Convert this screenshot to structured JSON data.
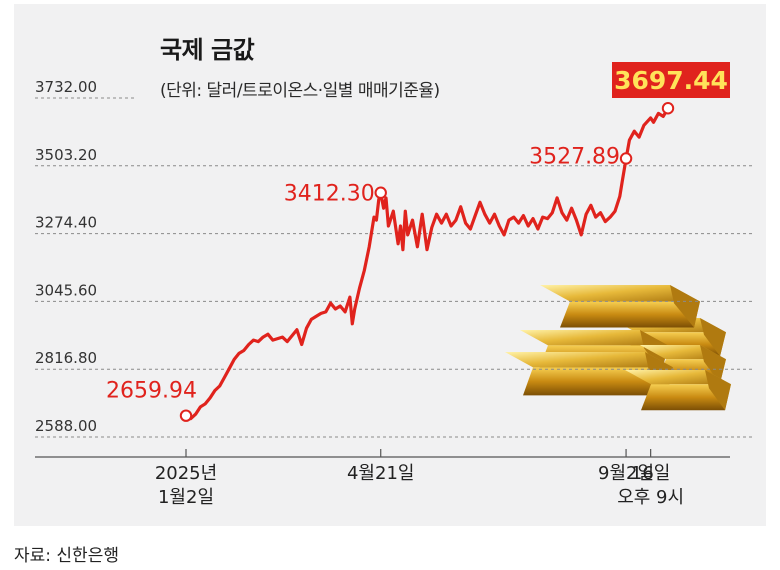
{
  "title": "국제 금값",
  "unit_note": "(단위: 달러/트로이온스·일별 매매기준율)",
  "source": "자료: 신한은행",
  "colors": {
    "line": "#e0231d",
    "highlight_box": "#e0231d",
    "background": "#f1f1f2"
  },
  "chart_data": {
    "type": "line",
    "title": "국제 금값",
    "ylim": [
      2588.0,
      3732.0
    ],
    "y_ticks": [
      "3732.00",
      "3503.20",
      "3274.40",
      "3045.60",
      "2816.80",
      "2588.00"
    ],
    "x_ticks": [
      {
        "line1": "2025년",
        "line2": "1월2일",
        "t": 0
      },
      {
        "line1": "4월21일",
        "line2": "",
        "t": 0.404
      },
      {
        "line1": "9월2일",
        "line2": "",
        "t": 0.913
      },
      {
        "line1": "16일",
        "line2": "오후 9시",
        "t": 0.964
      }
    ],
    "annotations": [
      {
        "label": "2659.94",
        "t": 0,
        "value": 2659.94
      },
      {
        "label": "3412.30",
        "t": 0.404,
        "value": 3412.3
      },
      {
        "label": "3527.89",
        "t": 0.913,
        "value": 3527.89
      },
      {
        "label": "3697.44",
        "t": 1.0,
        "value": 3697.44,
        "highlight": true
      }
    ],
    "series": [
      {
        "values": [
          [
            0.0,
            2659.94
          ],
          [
            0.01,
            2650
          ],
          [
            0.02,
            2665
          ],
          [
            0.03,
            2690
          ],
          [
            0.04,
            2700
          ],
          [
            0.05,
            2720
          ],
          [
            0.06,
            2745
          ],
          [
            0.07,
            2760
          ],
          [
            0.08,
            2790
          ],
          [
            0.09,
            2820
          ],
          [
            0.1,
            2850
          ],
          [
            0.11,
            2870
          ],
          [
            0.12,
            2880
          ],
          [
            0.13,
            2900
          ],
          [
            0.14,
            2915
          ],
          [
            0.15,
            2910
          ],
          [
            0.16,
            2925
          ],
          [
            0.17,
            2935
          ],
          [
            0.18,
            2915
          ],
          [
            0.19,
            2920
          ],
          [
            0.2,
            2925
          ],
          [
            0.21,
            2910
          ],
          [
            0.22,
            2930
          ],
          [
            0.23,
            2950
          ],
          [
            0.24,
            2900
          ],
          [
            0.25,
            2955
          ],
          [
            0.26,
            2985
          ],
          [
            0.27,
            2995
          ],
          [
            0.28,
            3005
          ],
          [
            0.29,
            3010
          ],
          [
            0.3,
            3040
          ],
          [
            0.31,
            3020
          ],
          [
            0.32,
            3030
          ],
          [
            0.33,
            3010
          ],
          [
            0.34,
            3060
          ],
          [
            0.345,
            2970
          ],
          [
            0.35,
            3020
          ],
          [
            0.36,
            3090
          ],
          [
            0.37,
            3150
          ],
          [
            0.38,
            3230
          ],
          [
            0.39,
            3330
          ],
          [
            0.395,
            3320
          ],
          [
            0.4,
            3390
          ],
          [
            0.404,
            3412.3
          ],
          [
            0.41,
            3360
          ],
          [
            0.415,
            3395
          ],
          [
            0.42,
            3300
          ],
          [
            0.43,
            3350
          ],
          [
            0.44,
            3240
          ],
          [
            0.445,
            3300
          ],
          [
            0.45,
            3220
          ],
          [
            0.455,
            3350
          ],
          [
            0.46,
            3270
          ],
          [
            0.47,
            3320
          ],
          [
            0.48,
            3230
          ],
          [
            0.49,
            3340
          ],
          [
            0.5,
            3220
          ],
          [
            0.51,
            3295
          ],
          [
            0.52,
            3340
          ],
          [
            0.53,
            3310
          ],
          [
            0.54,
            3340
          ],
          [
            0.55,
            3300
          ],
          [
            0.56,
            3320
          ],
          [
            0.57,
            3365
          ],
          [
            0.58,
            3310
          ],
          [
            0.59,
            3290
          ],
          [
            0.6,
            3335
          ],
          [
            0.61,
            3380
          ],
          [
            0.62,
            3340
          ],
          [
            0.63,
            3310
          ],
          [
            0.64,
            3340
          ],
          [
            0.65,
            3300
          ],
          [
            0.66,
            3270
          ],
          [
            0.67,
            3320
          ],
          [
            0.68,
            3330
          ],
          [
            0.69,
            3310
          ],
          [
            0.7,
            3335
          ],
          [
            0.71,
            3300
          ],
          [
            0.72,
            3325
          ],
          [
            0.73,
            3290
          ],
          [
            0.74,
            3330
          ],
          [
            0.75,
            3325
          ],
          [
            0.76,
            3345
          ],
          [
            0.77,
            3395
          ],
          [
            0.78,
            3345
          ],
          [
            0.79,
            3320
          ],
          [
            0.8,
            3360
          ],
          [
            0.81,
            3320
          ],
          [
            0.82,
            3270
          ],
          [
            0.83,
            3340
          ],
          [
            0.84,
            3370
          ],
          [
            0.85,
            3330
          ],
          [
            0.86,
            3345
          ],
          [
            0.87,
            3315
          ],
          [
            0.88,
            3330
          ],
          [
            0.89,
            3350
          ],
          [
            0.9,
            3400
          ],
          [
            0.905,
            3450
          ],
          [
            0.913,
            3527.89
          ],
          [
            0.92,
            3590
          ],
          [
            0.93,
            3620
          ],
          [
            0.94,
            3600
          ],
          [
            0.95,
            3640
          ],
          [
            0.964,
            3665
          ],
          [
            0.97,
            3650
          ],
          [
            0.98,
            3680
          ],
          [
            0.99,
            3670
          ],
          [
            1.0,
            3697.44
          ]
        ]
      }
    ]
  }
}
